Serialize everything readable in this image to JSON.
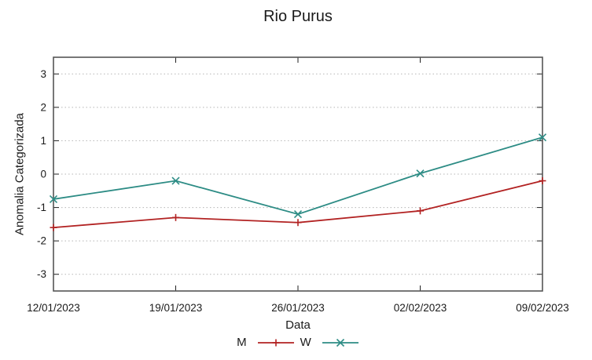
{
  "chart_data": {
    "type": "line",
    "title": "Rio Purus",
    "xlabel": "Data",
    "ylabel": "Anomalia Categorizada",
    "categories": [
      "12/01/2023",
      "19/01/2023",
      "26/01/2023",
      "02/02/2023",
      "09/02/2023"
    ],
    "series": [
      {
        "name": "M",
        "color": "#b22222",
        "marker": "plus",
        "values": [
          -1.6,
          -1.3,
          -1.45,
          -1.1,
          -0.2
        ]
      },
      {
        "name": "W",
        "color": "#2d8c85",
        "marker": "cross",
        "values": [
          -0.75,
          -0.2,
          -1.2,
          0.02,
          1.1
        ]
      }
    ],
    "ylim": [
      -3.5,
      3.5
    ],
    "yticks": [
      -3,
      -2,
      -1,
      0,
      1,
      2,
      3
    ],
    "grid": "horizontal-dotted",
    "legend_position": "bottom-center"
  }
}
